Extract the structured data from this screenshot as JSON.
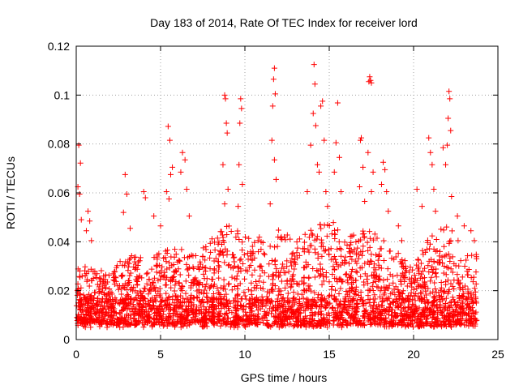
{
  "chart_data": {
    "type": "scatter",
    "title": "Day 183 of 2014, Rate Of TEC Index for receiver lord",
    "xlabel": "GPS time / hours",
    "ylabel": "ROTI / TECUs",
    "xlim": [
      0,
      25
    ],
    "ylim": [
      0,
      0.12
    ],
    "xticks": [
      "0",
      "5",
      "10",
      "15",
      "20",
      "25"
    ],
    "yticks": [
      "0",
      "0.02",
      "0.04",
      "0.06",
      "0.08",
      "0.1",
      "0.12"
    ],
    "grid": true,
    "marker": "+",
    "color": "#ff0000",
    "x_range_of_data": [
      0,
      23.75
    ],
    "series": [
      {
        "points": [
          [
            0.15,
            0.0795
          ],
          [
            0.25,
            0.0722
          ],
          [
            0.1,
            0.0625
          ],
          [
            0.2,
            0.0595
          ],
          [
            0.3,
            0.049
          ],
          [
            0.7,
            0.0525
          ],
          [
            0.8,
            0.0485
          ],
          [
            0.6,
            0.0445
          ],
          [
            0.9,
            0.0405
          ],
          [
            2.9,
            0.0675
          ],
          [
            3.0,
            0.0595
          ],
          [
            2.8,
            0.052
          ],
          [
            3.2,
            0.0455
          ],
          [
            4.0,
            0.0605
          ],
          [
            4.1,
            0.058
          ],
          [
            4.6,
            0.0505
          ],
          [
            5.0,
            0.0465
          ],
          [
            5.45,
            0.0872
          ],
          [
            5.55,
            0.0815
          ],
          [
            5.7,
            0.0705
          ],
          [
            5.6,
            0.0675
          ],
          [
            5.35,
            0.0605
          ],
          [
            5.5,
            0.0575
          ],
          [
            6.3,
            0.0765
          ],
          [
            6.45,
            0.0735
          ],
          [
            6.2,
            0.0685
          ],
          [
            6.55,
            0.0615
          ],
          [
            6.7,
            0.0505
          ],
          [
            8.8,
            0.1
          ],
          [
            8.85,
            0.0985
          ],
          [
            8.9,
            0.0885
          ],
          [
            8.95,
            0.0845
          ],
          [
            8.7,
            0.0715
          ],
          [
            9.0,
            0.0615
          ],
          [
            8.8,
            0.0555
          ],
          [
            9.75,
            0.0985
          ],
          [
            9.8,
            0.0945
          ],
          [
            9.7,
            0.0885
          ],
          [
            9.65,
            0.0715
          ],
          [
            9.85,
            0.0635
          ],
          [
            9.6,
            0.0545
          ],
          [
            11.75,
            0.111
          ],
          [
            11.7,
            0.1065
          ],
          [
            11.8,
            0.1005
          ],
          [
            11.65,
            0.0955
          ],
          [
            11.6,
            0.0815
          ],
          [
            11.75,
            0.0735
          ],
          [
            11.85,
            0.0655
          ],
          [
            11.5,
            0.0555
          ],
          [
            14.1,
            0.1125
          ],
          [
            14.15,
            0.1045
          ],
          [
            14.05,
            0.0925
          ],
          [
            14.2,
            0.0875
          ],
          [
            13.9,
            0.0795
          ],
          [
            14.3,
            0.0715
          ],
          [
            13.7,
            0.0605
          ],
          [
            14.6,
            0.0975
          ],
          [
            14.5,
            0.0955
          ],
          [
            14.7,
            0.0815
          ],
          [
            14.4,
            0.0685
          ],
          [
            14.8,
            0.0605
          ],
          [
            14.9,
            0.0545
          ],
          [
            15.5,
            0.0968
          ],
          [
            15.4,
            0.0805
          ],
          [
            15.6,
            0.0745
          ],
          [
            15.3,
            0.0685
          ],
          [
            15.7,
            0.0605
          ],
          [
            16.9,
            0.0825
          ],
          [
            16.85,
            0.0815
          ],
          [
            17.0,
            0.0705
          ],
          [
            16.8,
            0.0625
          ],
          [
            17.1,
            0.0565
          ],
          [
            17.4,
            0.1075
          ],
          [
            17.45,
            0.106
          ],
          [
            17.5,
            0.105
          ],
          [
            17.35,
            0.1055
          ],
          [
            17.3,
            0.0765
          ],
          [
            17.6,
            0.0685
          ],
          [
            17.5,
            0.0605
          ],
          [
            18.2,
            0.0725
          ],
          [
            18.3,
            0.0695
          ],
          [
            18.1,
            0.0635
          ],
          [
            18.4,
            0.0605
          ],
          [
            18.5,
            0.0525
          ],
          [
            19.1,
            0.0465
          ],
          [
            19.3,
            0.0405
          ],
          [
            20.2,
            0.0615
          ],
          [
            20.5,
            0.0545
          ],
          [
            20.9,
            0.0825
          ],
          [
            21.0,
            0.0765
          ],
          [
            21.1,
            0.0715
          ],
          [
            21.2,
            0.0615
          ],
          [
            21.3,
            0.0525
          ],
          [
            21.75,
            0.0785
          ],
          [
            21.9,
            0.0715
          ],
          [
            22.1,
            0.1015
          ],
          [
            22.15,
            0.0985
          ],
          [
            22.05,
            0.0905
          ],
          [
            22.2,
            0.0855
          ],
          [
            22.0,
            0.0795
          ],
          [
            22.25,
            0.0585
          ],
          [
            22.6,
            0.0505
          ],
          [
            23.0,
            0.0465
          ],
          [
            23.4,
            0.0445
          ],
          [
            23.6,
            0.0405
          ]
        ]
      }
    ],
    "dense_envelope": {
      "note": "dense band of + markers covering the listed hour range",
      "hours": [
        0,
        1,
        2,
        3,
        4,
        5,
        6,
        7,
        8,
        9,
        10,
        11,
        12,
        13,
        14,
        15,
        16,
        17,
        18,
        19,
        20,
        21,
        22,
        23,
        23.75
      ],
      "low": [
        0.006,
        0.007,
        0.006,
        0.006,
        0.006,
        0.007,
        0.006,
        0.007,
        0.007,
        0.006,
        0.006,
        0.006,
        0.005,
        0.006,
        0.005,
        0.006,
        0.006,
        0.006,
        0.006,
        0.006,
        0.005,
        0.006,
        0.006,
        0.006,
        0.006
      ],
      "high": [
        0.03,
        0.032,
        0.026,
        0.036,
        0.033,
        0.036,
        0.038,
        0.034,
        0.041,
        0.047,
        0.043,
        0.042,
        0.045,
        0.041,
        0.046,
        0.05,
        0.043,
        0.045,
        0.043,
        0.036,
        0.03,
        0.043,
        0.047,
        0.038,
        0.036
      ]
    }
  }
}
